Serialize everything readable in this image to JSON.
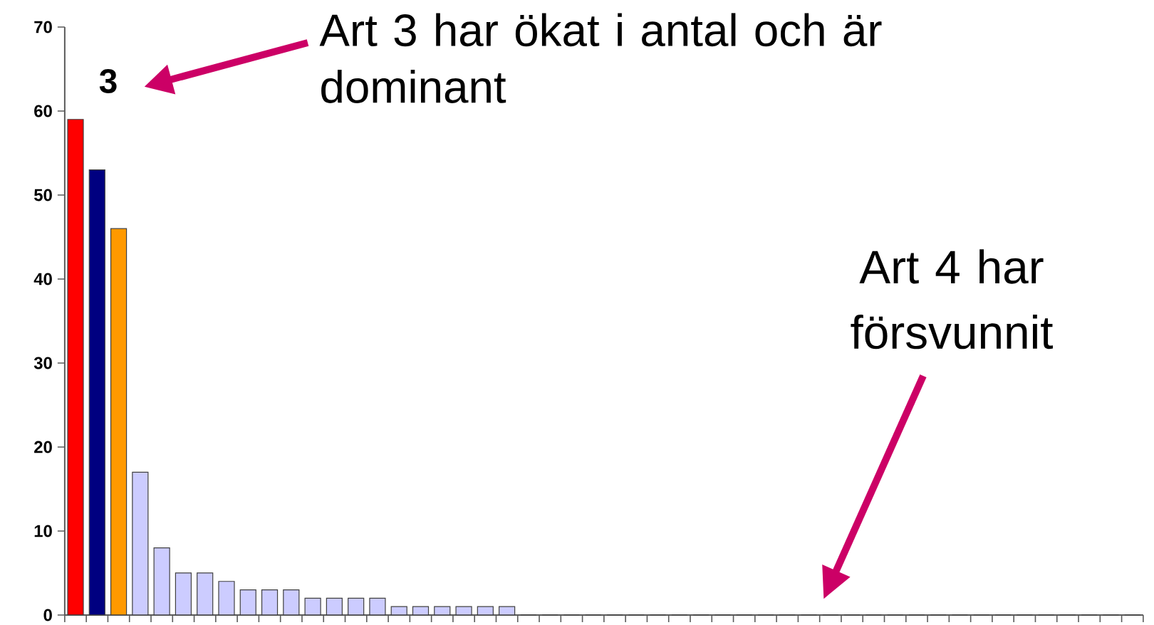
{
  "chart_data": {
    "type": "bar",
    "categories": [
      null,
      null,
      null,
      null,
      null,
      null,
      null,
      null,
      null,
      null,
      null,
      null,
      null,
      null,
      null,
      null,
      null,
      null,
      null,
      null,
      null,
      null,
      null,
      null,
      null,
      null,
      null,
      null,
      null,
      null,
      null,
      null,
      null,
      null,
      null,
      null,
      null,
      null,
      null,
      null,
      null,
      null,
      null,
      null,
      null,
      null,
      null,
      null,
      null,
      null
    ],
    "values": [
      59,
      53,
      46,
      17,
      8,
      5,
      5,
      4,
      3,
      3,
      3,
      2,
      2,
      2,
      2,
      1,
      1,
      1,
      1,
      1,
      1,
      0,
      0,
      0,
      0,
      0,
      0,
      0,
      0,
      0,
      0,
      0,
      0,
      0,
      0,
      0,
      0,
      0,
      0,
      0,
      0,
      0,
      0,
      0,
      0,
      0,
      0,
      0,
      0,
      0
    ],
    "colors": [
      "#ff0000",
      "#000080",
      "#ff9900",
      "#ccccff",
      "#ccccff",
      "#ccccff",
      "#ccccff",
      "#ccccff",
      "#ccccff",
      "#ccccff",
      "#ccccff",
      "#ccccff",
      "#ccccff",
      "#ccccff",
      "#ccccff",
      "#ccccff",
      "#ccccff",
      "#ccccff",
      "#ccccff",
      "#ccccff",
      "#ccccff",
      "#ccccff",
      "#ccccff",
      "#ccccff",
      "#ccccff",
      "#ccccff",
      "#ccccff",
      "#ccccff",
      "#ccccff",
      "#ccccff",
      "#ccccff",
      "#ccccff",
      "#ccccff",
      "#ccccff",
      "#ccccff",
      "#ccccff",
      "#ccccff",
      "#ccccff",
      "#ccccff",
      "#ccccff",
      "#ccccff",
      "#ccccff",
      "#ccccff",
      "#ccccff",
      "#ccccff",
      "#ccccff",
      "#ccccff",
      "#ccccff",
      "#ccccff",
      "#ccccff"
    ],
    "ylim": [
      0,
      70
    ],
    "yticks": [
      0,
      10,
      20,
      30,
      40,
      50,
      60,
      70
    ],
    "annotations": [
      "3",
      "Art 3 har ökat i antal och är dominant",
      "Art 4 har försvunnit"
    ]
  }
}
